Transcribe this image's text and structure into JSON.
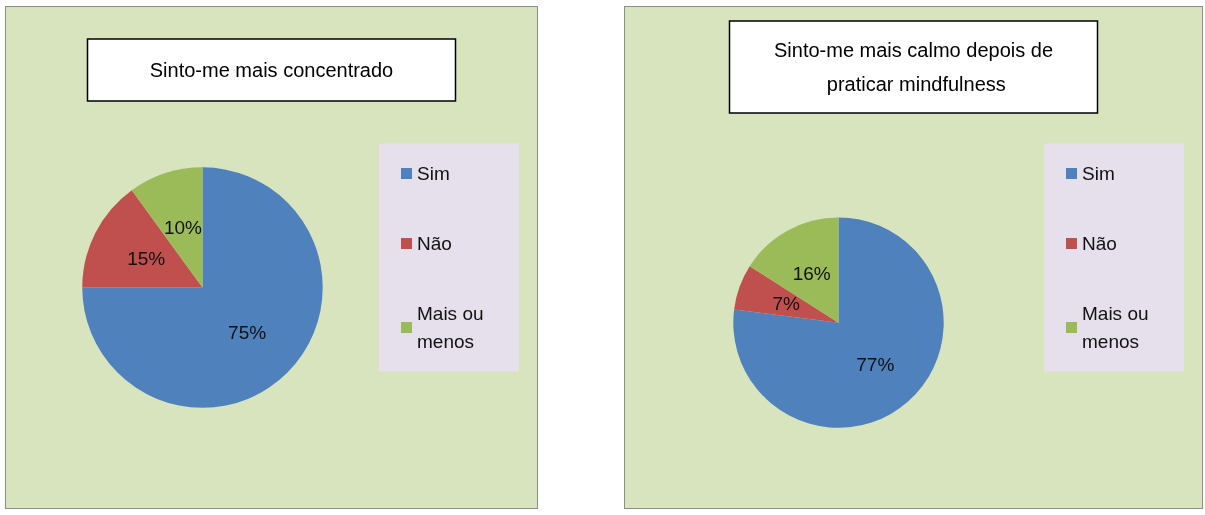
{
  "chart_data": [
    {
      "type": "pie",
      "title": "Sinto-me mais concentrado",
      "categories": [
        "Sim",
        "Não",
        "Mais ou menos"
      ],
      "values": [
        75,
        15,
        10
      ],
      "value_labels": [
        "75%",
        "15%",
        "10%"
      ],
      "colors": [
        "#4f81bd",
        "#c0504d",
        "#9bbb59"
      ],
      "legend": "right"
    },
    {
      "type": "pie",
      "title": "Sinto-me mais calmo depois de praticar mindfulness",
      "categories": [
        "Sim",
        "Não",
        "Mais ou menos"
      ],
      "values": [
        77,
        7,
        16
      ],
      "value_labels": [
        "77%",
        "7%",
        "16%"
      ],
      "colors": [
        "#4f81bd",
        "#c0504d",
        "#9bbb59"
      ],
      "legend": "right"
    }
  ]
}
